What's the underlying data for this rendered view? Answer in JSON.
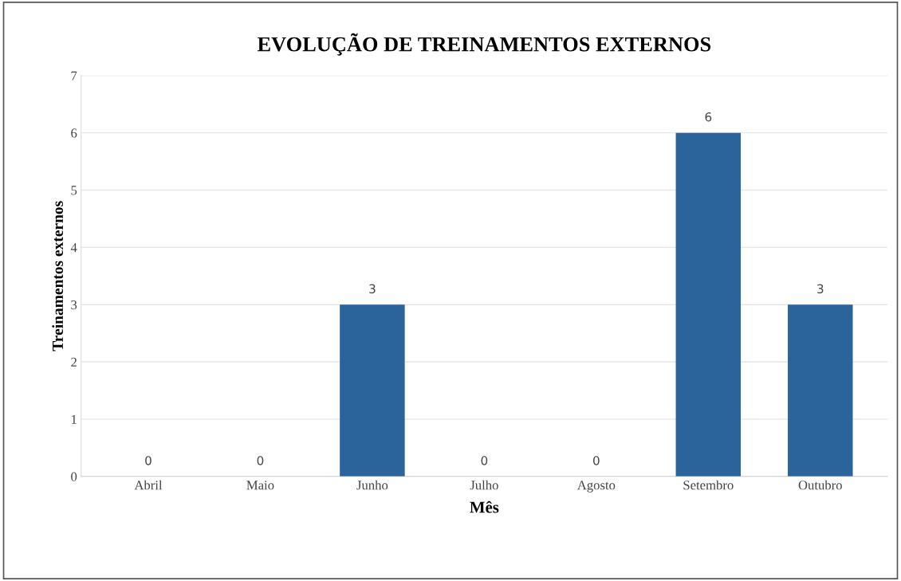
{
  "chart_data": {
    "type": "bar",
    "title": "EVOLUÇÃO DE TREINAMENTOS EXTERNOS",
    "xlabel": "Mês",
    "ylabel": "Treinamentos externos",
    "categories": [
      "Abril",
      "Maio",
      "Junho",
      "Julho",
      "Agosto",
      "Setembro",
      "Outubro"
    ],
    "values": [
      0,
      0,
      3,
      0,
      0,
      6,
      3
    ],
    "color": "#2b639b",
    "ylim": [
      0,
      7
    ],
    "yticks": [
      0,
      1,
      2,
      3,
      4,
      5,
      6,
      7
    ],
    "grid": "y",
    "data_labels": true,
    "legend": false
  }
}
